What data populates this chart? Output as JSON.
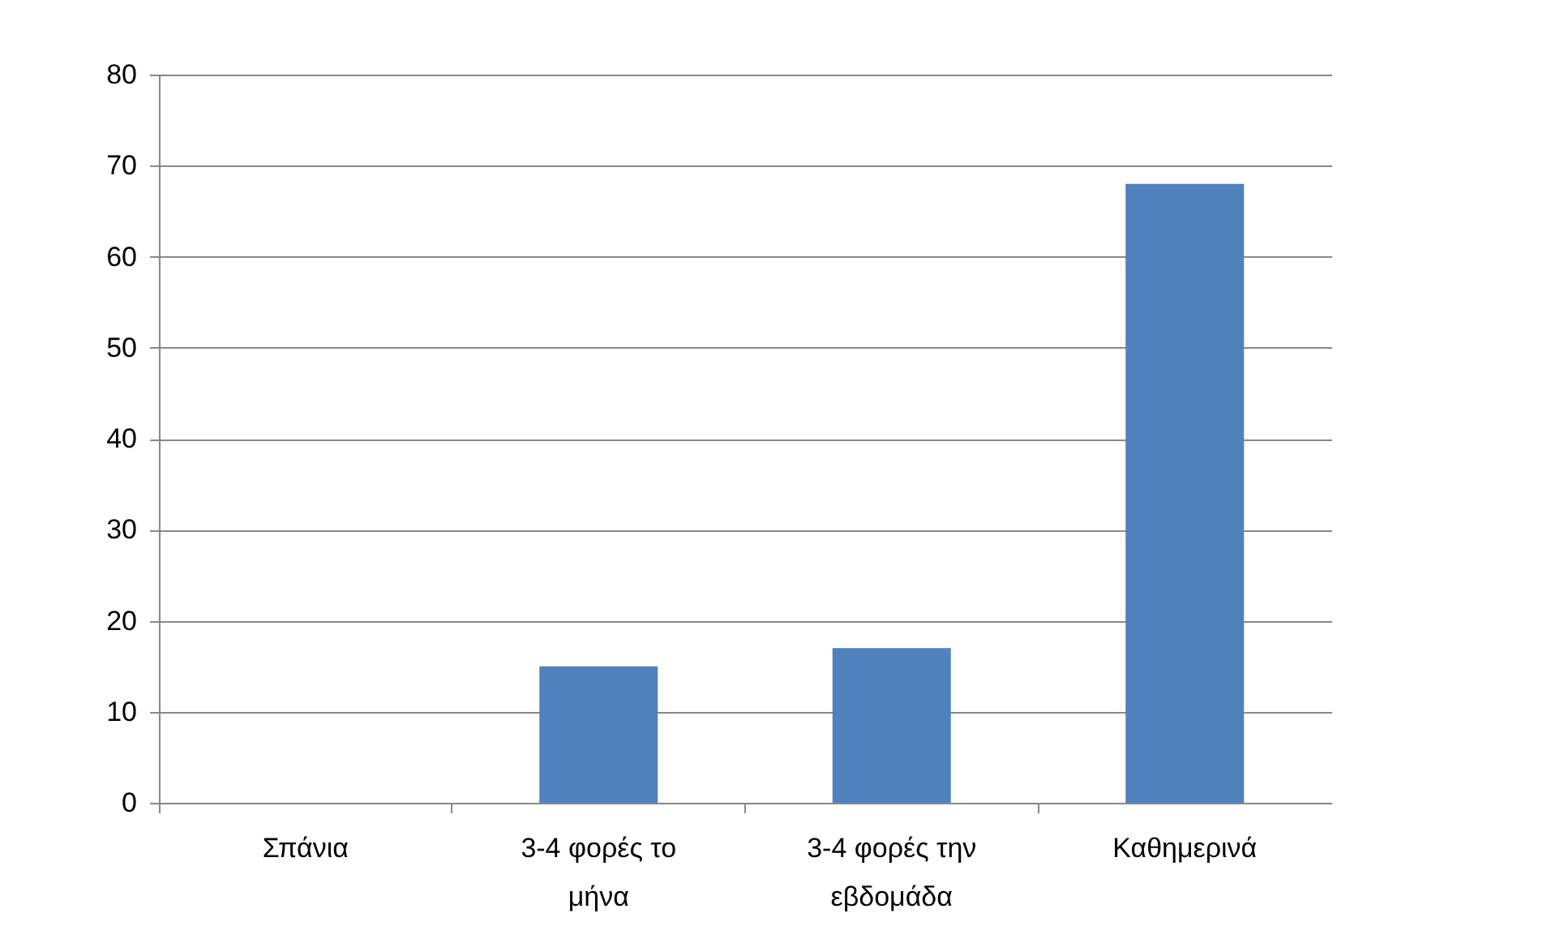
{
  "chart_data": {
    "type": "bar",
    "categories": [
      "Σπάνια",
      "3-4 φορές το μήνα",
      "3-4 φορές την εβδομάδα",
      "Καθημερινά"
    ],
    "values": [
      0,
      15,
      17,
      68
    ],
    "color": "#4f81bd",
    "ylim": [
      0,
      80
    ],
    "yticks": [
      0,
      10,
      20,
      30,
      40,
      50,
      60,
      70,
      80
    ],
    "grid": "y"
  }
}
